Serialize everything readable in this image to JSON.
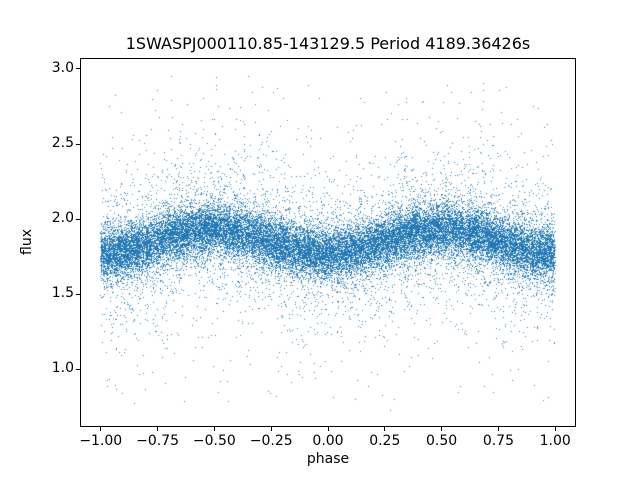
{
  "chart_data": {
    "type": "scatter",
    "title": "1SWASPJ000110.85-143129.5 Period 4189.36426s",
    "xlabel": "phase",
    "ylabel": "flux",
    "xlim": [
      -1.087,
      1.087
    ],
    "ylim": [
      0.623,
      3.066
    ],
    "xticks": {
      "values": [
        -1.0,
        -0.75,
        -0.5,
        -0.25,
        0.0,
        0.25,
        0.5,
        0.75,
        1.0
      ],
      "labels": [
        "−1.00",
        "−0.75",
        "−0.50",
        "−0.25",
        "0.00",
        "0.25",
        "0.50",
        "0.75",
        "1.00"
      ]
    },
    "yticks": {
      "values": [
        1.0,
        1.5,
        2.0,
        2.5,
        3.0
      ],
      "labels": [
        "1.0",
        "1.5",
        "2.0",
        "2.5",
        "3.0"
      ]
    },
    "grid": false,
    "legend": null,
    "marker_color": "#1f77b4",
    "marker_size": 1,
    "n_points": 30000,
    "model": {
      "description": "phase-folded stellar light curve: dense noisy band with weak sinusoidal modulation, minima near phase 0 and ±1, maxima near phase ±0.5",
      "x_range": [
        -1.0,
        1.0
      ],
      "baseline_flux": 1.85,
      "modulation_amplitude": 0.08,
      "modulation": "flux_center(phase) = 1.85 - 0.08 * cos(2*pi*phase)",
      "noise_components": [
        {
          "fraction": 0.8,
          "sigma": 0.085
        },
        {
          "fraction": 0.14,
          "sigma": 0.22
        },
        {
          "fraction": 0.06,
          "sigma": 0.45
        }
      ],
      "flux_clip": [
        0.68,
        2.95
      ],
      "seed": 42
    }
  }
}
